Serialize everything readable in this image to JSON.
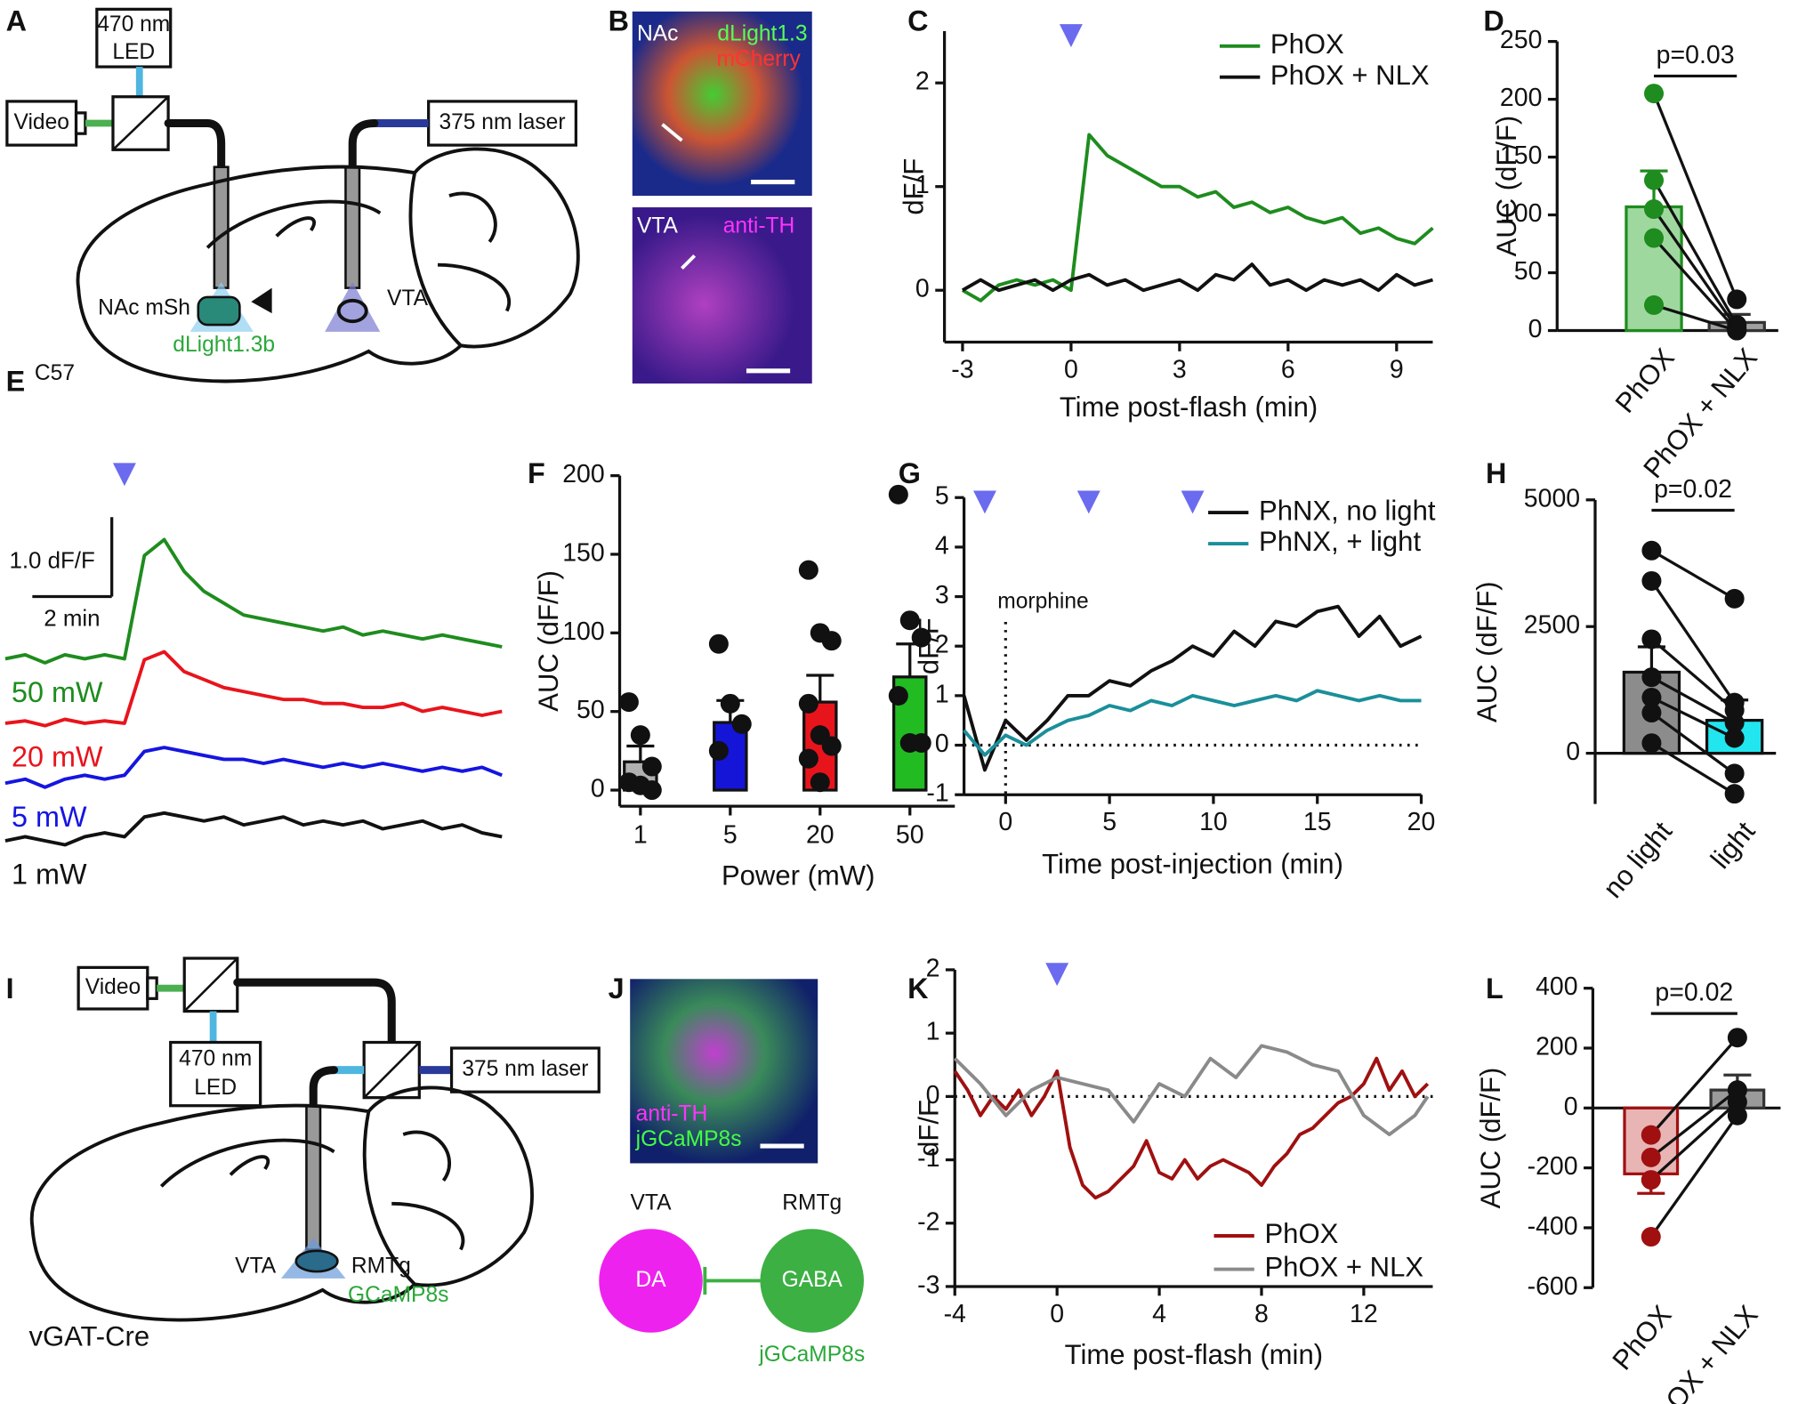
{
  "diagrams": {
    "A": {
      "panel": "A",
      "led_1": "470 nm",
      "led_2": "LED",
      "video": "Video",
      "laser": "375 nm laser",
      "site_1": "NAc mSh",
      "site_2": "VTA",
      "mouse": "C57",
      "sensor": "dLight1.3b"
    },
    "B": {
      "panel": "B",
      "region_1": "NAc",
      "stain_1": "dLight1.3",
      "stain_2": "mCherry",
      "region_2": "VTA",
      "stain_3": "anti-TH"
    },
    "I": {
      "panel": "I",
      "video": "Video",
      "led_1": "470 nm",
      "led_2": "LED",
      "laser": "375 nm laser",
      "site_1": "VTA",
      "site_2": "RMTg",
      "sensor": "GCaMP8s",
      "mouse": "vGAT-Cre"
    },
    "J": {
      "panel": "J",
      "stain_1": "anti-TH",
      "stain_2": "jGCaMP8s",
      "region_1": "VTA",
      "region_2": "RMTg",
      "cell_1": "DA",
      "cell_2": "GABA",
      "sensor": "jGCaMP8s"
    }
  },
  "chart_data": [
    {
      "panel": "C",
      "type": "line",
      "xlabel": "Time post-flash (min)",
      "ylabel": "dF/F",
      "xlim": [
        -3.5,
        10
      ],
      "ylim": [
        -0.5,
        2.5
      ],
      "xticks": [
        -3,
        0,
        3,
        6,
        9
      ],
      "yticks": [
        0,
        1,
        2
      ],
      "markers": [
        0
      ],
      "legend": "upper right",
      "series": [
        {
          "name": "PhOX",
          "color": "#1e8c1e",
          "x": [
            -3,
            -2.5,
            -2,
            -1.5,
            -1,
            -0.5,
            0,
            0.5,
            1,
            1.5,
            2,
            2.5,
            3,
            3.5,
            4,
            4.5,
            5,
            5.5,
            6,
            6.5,
            7,
            7.5,
            8,
            8.5,
            9,
            9.5,
            10
          ],
          "values": [
            0.0,
            -0.1,
            0.05,
            0.1,
            0.05,
            0.1,
            0.0,
            1.5,
            1.3,
            1.2,
            1.1,
            1.0,
            1.0,
            0.9,
            0.95,
            0.8,
            0.85,
            0.75,
            0.8,
            0.7,
            0.65,
            0.7,
            0.55,
            0.6,
            0.5,
            0.45,
            0.6
          ]
        },
        {
          "name": "PhOX + NLX",
          "color": "#111111",
          "x": [
            -3,
            -2.5,
            -2,
            -1.5,
            -1,
            -0.5,
            0,
            0.5,
            1,
            1.5,
            2,
            2.5,
            3,
            3.5,
            4,
            4.5,
            5,
            5.5,
            6,
            6.5,
            7,
            7.5,
            8,
            8.5,
            9,
            9.5,
            10
          ],
          "values": [
            0.0,
            0.1,
            0.0,
            0.05,
            0.1,
            0.0,
            0.1,
            0.15,
            0.05,
            0.1,
            0.0,
            0.05,
            0.1,
            0.0,
            0.15,
            0.1,
            0.25,
            0.05,
            0.1,
            0.0,
            0.1,
            0.05,
            0.1,
            0.0,
            0.15,
            0.05,
            0.1
          ]
        }
      ]
    },
    {
      "panel": "D",
      "type": "bar",
      "ylabel": "AUC (dF/F)",
      "categories": [
        "PhOX",
        "PhOX + NLX"
      ],
      "values": [
        107,
        7
      ],
      "errors": [
        31,
        7
      ],
      "fills": [
        "#9fd89f",
        "#a0a0a0"
      ],
      "colors": [
        "#1e8c1e",
        "#333333"
      ],
      "point_colors": [
        "#1e8c1e",
        "#111111"
      ],
      "points": [
        [
          205,
          130,
          105,
          80,
          22
        ],
        [
          27,
          5,
          2,
          0,
          0
        ]
      ],
      "paired": true,
      "annotation": "p=0.03",
      "ylim": [
        0,
        250
      ],
      "yticks": [
        0,
        50,
        100,
        150,
        200,
        250
      ]
    },
    {
      "panel": "E",
      "type": "stacked_line",
      "markers": [
        0
      ],
      "scalebar": {
        "y": {
          "value": 1.0,
          "label": "1.0 dF/F"
        },
        "x": {
          "value": 2,
          "label": "2 min"
        }
      },
      "series": [
        {
          "name": "50 mW",
          "color": "#1e8c1e",
          "x": [
            -3,
            -2.5,
            -2,
            -1.5,
            -1,
            -0.5,
            0,
            0.5,
            1,
            1.5,
            2,
            2.5,
            3,
            3.5,
            4,
            4.5,
            5,
            5.5,
            6,
            6.5,
            7,
            7.5,
            8,
            8.5,
            9,
            9.5
          ],
          "values": [
            0,
            0.05,
            -0.05,
            0.05,
            0,
            0.05,
            0.0,
            1.3,
            1.5,
            1.1,
            0.85,
            0.7,
            0.55,
            0.5,
            0.45,
            0.4,
            0.35,
            0.4,
            0.3,
            0.35,
            0.3,
            0.25,
            0.3,
            0.25,
            0.2,
            0.15
          ]
        },
        {
          "name": "20 mW",
          "color": "#e8141c",
          "x": [
            -3,
            -2.5,
            -2,
            -1.5,
            -1,
            -0.5,
            0,
            0.5,
            1,
            1.5,
            2,
            2.5,
            3,
            3.5,
            4,
            4.5,
            5,
            5.5,
            6,
            6.5,
            7,
            7.5,
            8,
            8.5,
            9,
            9.5
          ],
          "values": [
            0,
            0.03,
            -0.03,
            0.05,
            0,
            0.03,
            0,
            0.8,
            0.9,
            0.65,
            0.55,
            0.45,
            0.4,
            0.35,
            0.3,
            0.3,
            0.25,
            0.25,
            0.2,
            0.2,
            0.25,
            0.15,
            0.2,
            0.15,
            0.1,
            0.15
          ]
        },
        {
          "name": "5 mW",
          "color": "#1515e0",
          "x": [
            -3,
            -2.5,
            -2,
            -1.5,
            -1,
            -0.5,
            0,
            0.5,
            1,
            1.5,
            2,
            2.5,
            3,
            3.5,
            4,
            4.5,
            5,
            5.5,
            6,
            6.5,
            7,
            7.5,
            8,
            8.5,
            9,
            9.5
          ],
          "values": [
            0,
            0.05,
            -0.05,
            0.05,
            0.1,
            0.05,
            0.1,
            0.4,
            0.45,
            0.4,
            0.35,
            0.3,
            0.3,
            0.25,
            0.3,
            0.25,
            0.2,
            0.25,
            0.2,
            0.25,
            0.2,
            0.15,
            0.2,
            0.15,
            0.2,
            0.1
          ]
        },
        {
          "name": "1 mW",
          "color": "#111111",
          "x": [
            -3,
            -2.5,
            -2,
            -1.5,
            -1,
            -0.5,
            0,
            0.5,
            1,
            1.5,
            2,
            2.5,
            3,
            3.5,
            4,
            4.5,
            5,
            5.5,
            6,
            6.5,
            7,
            7.5,
            8,
            8.5,
            9,
            9.5
          ],
          "values": [
            0,
            0.05,
            0,
            -0.05,
            0.05,
            0.1,
            0.05,
            0.3,
            0.35,
            0.3,
            0.25,
            0.3,
            0.2,
            0.25,
            0.3,
            0.2,
            0.25,
            0.2,
            0.25,
            0.15,
            0.2,
            0.25,
            0.15,
            0.2,
            0.1,
            0.05
          ]
        }
      ]
    },
    {
      "panel": "F",
      "type": "bar",
      "ylabel": "AUC (dF/F)",
      "xlabel": "Power (mW)",
      "categories": [
        "1",
        "5",
        "20",
        "50"
      ],
      "values": [
        18,
        43,
        56,
        72
      ],
      "errors": [
        10,
        14,
        17,
        21
      ],
      "fills": [
        "#b0b0b0",
        "#1515d8",
        "#e8141c",
        "#22bb22"
      ],
      "colors": [
        "#111111",
        "#111111",
        "#111111",
        "#111111"
      ],
      "point_colors": [
        "#111111",
        "#111111",
        "#111111",
        "#111111"
      ],
      "points": [
        [
          56,
          35,
          15,
          5,
          3,
          0
        ],
        [
          93,
          55,
          42,
          25
        ],
        [
          140,
          100,
          95,
          55,
          35,
          28,
          20,
          5
        ],
        [
          188,
          108,
          97,
          60,
          30,
          30
        ]
      ],
      "paired": false,
      "ylim": [
        0,
        200
      ],
      "yticks": [
        0,
        50,
        100,
        150,
        200
      ]
    },
    {
      "panel": "G",
      "type": "line",
      "xlabel": "Time post-injection (min)",
      "ylabel": "dF/F",
      "xlim": [
        -2,
        20
      ],
      "ylim": [
        -1,
        5
      ],
      "xticks": [
        0,
        5,
        10,
        15,
        20
      ],
      "yticks": [
        -1,
        0,
        1,
        2,
        3,
        4,
        5
      ],
      "markers": [
        -1,
        4,
        9
      ],
      "zero_line": true,
      "annotations": [
        {
          "text": "morphine",
          "x": 0
        }
      ],
      "legend": "upper right",
      "series": [
        {
          "name": "PhNX, no light",
          "color": "#111111",
          "x": [
            -2,
            -1,
            0,
            1,
            2,
            3,
            4,
            5,
            6,
            7,
            8,
            9,
            10,
            11,
            12,
            13,
            14,
            15,
            16,
            17,
            18,
            19,
            20
          ],
          "values": [
            1.0,
            -0.5,
            0.5,
            0.1,
            0.5,
            1.0,
            1.0,
            1.3,
            1.2,
            1.5,
            1.7,
            2.0,
            1.8,
            2.3,
            2.0,
            2.5,
            2.4,
            2.7,
            2.8,
            2.2,
            2.6,
            2.0,
            2.2
          ]
        },
        {
          "name": "PhNX, + light",
          "color": "#1a8f9a",
          "x": [
            -2,
            -1,
            0,
            1,
            2,
            3,
            4,
            5,
            6,
            7,
            8,
            9,
            10,
            11,
            12,
            13,
            14,
            15,
            16,
            17,
            18,
            19,
            20
          ],
          "values": [
            0.3,
            -0.2,
            0.2,
            0.0,
            0.3,
            0.5,
            0.6,
            0.8,
            0.7,
            0.9,
            0.8,
            1.0,
            0.9,
            0.8,
            0.9,
            1.0,
            0.9,
            1.1,
            1.0,
            0.9,
            1.0,
            0.9,
            0.9
          ]
        }
      ]
    },
    {
      "panel": "H",
      "type": "bar",
      "ylabel": "AUC (dF/F)",
      "categories": [
        "no light",
        "light"
      ],
      "values": [
        1600,
        650
      ],
      "errors": [
        500,
        400
      ],
      "fills": [
        "#8c8c8c",
        "#22e6ef"
      ],
      "colors": [
        "#111111",
        "#111111"
      ],
      "point_colors": [
        "#111111",
        "#111111"
      ],
      "points": [
        [
          4000,
          3400,
          2250,
          1500,
          1100,
          800,
          200
        ],
        [
          3050,
          1000,
          850,
          600,
          300,
          -400,
          -800
        ]
      ],
      "paired": true,
      "annotation": "p=0.02",
      "ylim": [
        -1000,
        5000
      ],
      "yticks": [
        0,
        2500,
        5000
      ]
    },
    {
      "panel": "K",
      "type": "line",
      "xlabel": "Time post-flash (min)",
      "ylabel": "dF/F",
      "xlim": [
        -4,
        14.7
      ],
      "ylim": [
        -3,
        2
      ],
      "xticks": [
        -4,
        0,
        4,
        8,
        12
      ],
      "yticks": [
        -3,
        -2,
        -1,
        0,
        1,
        2
      ],
      "markers": [
        0
      ],
      "zero_line": true,
      "legend": "lower right",
      "series": [
        {
          "name": "PhOX",
          "color": "#a01010",
          "x": [
            -4,
            -3.5,
            -3,
            -2.5,
            -2,
            -1.5,
            -1,
            -0.5,
            0,
            0.5,
            1,
            1.5,
            2,
            2.5,
            3,
            3.5,
            4,
            4.5,
            5,
            5.5,
            6,
            6.5,
            7,
            7.5,
            8,
            8.5,
            9,
            9.5,
            10,
            10.5,
            11,
            11.5,
            12,
            12.5,
            13,
            13.5,
            14,
            14.5
          ],
          "values": [
            0.4,
            0.1,
            -0.3,
            0.0,
            -0.2,
            0.1,
            -0.3,
            0.0,
            0.4,
            -0.8,
            -1.4,
            -1.6,
            -1.5,
            -1.3,
            -1.1,
            -0.7,
            -1.2,
            -1.3,
            -1.0,
            -1.3,
            -1.1,
            -1.0,
            -1.1,
            -1.2,
            -1.4,
            -1.1,
            -0.9,
            -0.6,
            -0.5,
            -0.3,
            -0.1,
            0.0,
            0.2,
            0.6,
            0.1,
            0.4,
            0.0,
            0.2
          ]
        },
        {
          "name": "PhOX + NLX",
          "color": "#8a8a8a",
          "x": [
            -4,
            -3,
            -2,
            -1,
            0,
            1,
            2,
            3,
            4,
            5,
            6,
            7,
            8,
            9,
            10,
            11,
            12,
            13,
            14,
            14.5
          ],
          "values": [
            0.6,
            0.2,
            -0.3,
            0.1,
            0.3,
            0.2,
            0.1,
            -0.4,
            0.2,
            0.0,
            0.6,
            0.3,
            0.8,
            0.7,
            0.5,
            0.4,
            -0.3,
            -0.6,
            -0.3,
            0.0
          ]
        }
      ]
    },
    {
      "panel": "L",
      "type": "bar",
      "ylabel": "AUC (dF/F)",
      "categories": [
        "PhOX",
        "PhOX + NLX"
      ],
      "values": [
        -220,
        60
      ],
      "errors": [
        65,
        50
      ],
      "fills": [
        "#e8b4b4",
        "#9a9a9a"
      ],
      "colors": [
        "#a01010",
        "#333333"
      ],
      "point_colors": [
        "#a01010",
        "#111111"
      ],
      "points": [
        [
          -90,
          -165,
          -240,
          -430
        ],
        [
          235,
          60,
          20,
          -25
        ]
      ],
      "paired": true,
      "annotation": "p=0.02",
      "ylim": [
        -600,
        400
      ],
      "yticks": [
        -600,
        -400,
        -200,
        0,
        200,
        400
      ]
    }
  ]
}
